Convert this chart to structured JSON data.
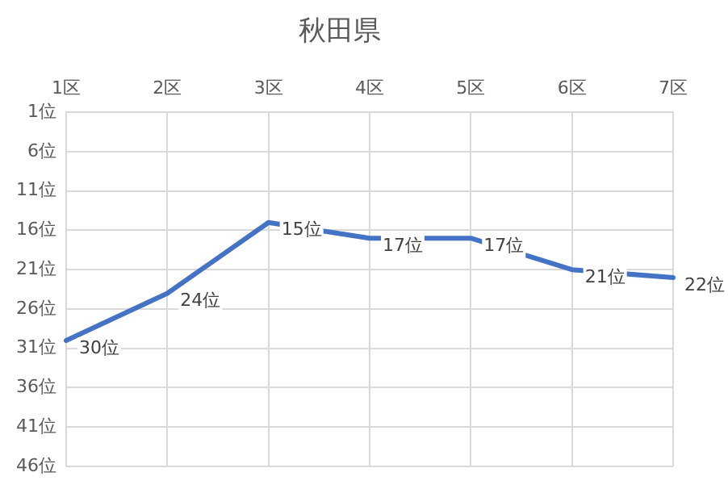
{
  "chart_data": {
    "type": "line",
    "title": "秋田県",
    "categories": [
      "1区",
      "2区",
      "3区",
      "4区",
      "5区",
      "6区",
      "7区"
    ],
    "series": [
      {
        "color": "#4472c4",
        "values": [
          30,
          24,
          15,
          17,
          17,
          21,
          22
        ],
        "value_labels": [
          "30位",
          "24位",
          "15位",
          "17位",
          "17位",
          "21位",
          "22位"
        ]
      }
    ],
    "ylim": [
      46,
      1
    ],
    "yticks": [
      {
        "value": 1,
        "label": "1位"
      },
      {
        "value": 6,
        "label": "6位"
      },
      {
        "value": 11,
        "label": "11位"
      },
      {
        "value": 16,
        "label": "16位"
      },
      {
        "value": 21,
        "label": "21位"
      },
      {
        "value": 26,
        "label": "26位"
      },
      {
        "value": 31,
        "label": "31位"
      },
      {
        "value": 36,
        "label": "36位"
      },
      {
        "value": 41,
        "label": "41位"
      },
      {
        "value": 46,
        "label": "46位"
      }
    ],
    "grid": true,
    "marker": "none",
    "line_style": "solid",
    "legend": false
  }
}
